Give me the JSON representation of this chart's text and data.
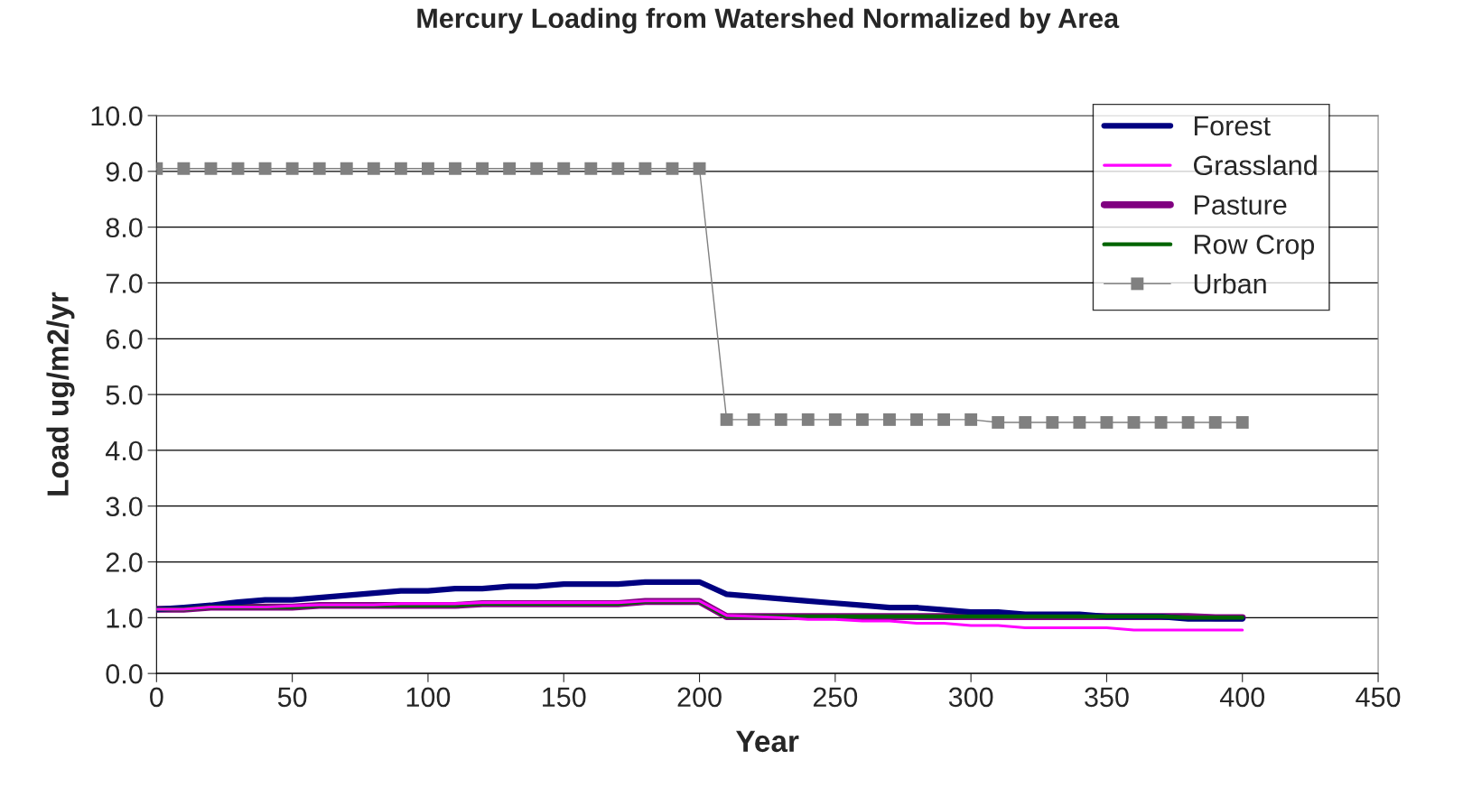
{
  "chart_data": {
    "type": "line",
    "title": "Mercury Loading from Watershed Normalized by Area",
    "xlabel": "Year",
    "ylabel": "Load ug/m2/yr",
    "x": [
      0,
      10,
      20,
      30,
      40,
      50,
      60,
      70,
      80,
      90,
      100,
      110,
      120,
      130,
      140,
      150,
      160,
      170,
      180,
      190,
      200,
      210,
      220,
      230,
      240,
      250,
      260,
      270,
      280,
      290,
      300,
      310,
      320,
      330,
      340,
      350,
      360,
      370,
      380,
      390,
      400
    ],
    "series": [
      {
        "name": "Forest",
        "color": "#000080",
        "marker": "none",
        "values": [
          1.15,
          1.18,
          1.22,
          1.28,
          1.32,
          1.32,
          1.36,
          1.4,
          1.44,
          1.48,
          1.48,
          1.52,
          1.52,
          1.56,
          1.56,
          1.6,
          1.6,
          1.6,
          1.64,
          1.64,
          1.64,
          1.42,
          1.38,
          1.34,
          1.3,
          1.26,
          1.22,
          1.18,
          1.18,
          1.14,
          1.1,
          1.1,
          1.06,
          1.06,
          1.06,
          1.02,
          1.02,
          1.02,
          0.98,
          0.98,
          0.98
        ]
      },
      {
        "name": "Grassland",
        "color": "#ff00ff",
        "marker": "none",
        "values": [
          1.15,
          1.15,
          1.19,
          1.19,
          1.19,
          1.21,
          1.23,
          1.23,
          1.23,
          1.25,
          1.25,
          1.25,
          1.27,
          1.27,
          1.27,
          1.27,
          1.27,
          1.27,
          1.3,
          1.3,
          1.3,
          1.04,
          1.02,
          1.0,
          0.97,
          0.97,
          0.94,
          0.94,
          0.9,
          0.9,
          0.86,
          0.86,
          0.82,
          0.82,
          0.82,
          0.82,
          0.78,
          0.78,
          0.78,
          0.78,
          0.78
        ]
      },
      {
        "name": "Pasture",
        "color": "#800080",
        "marker": "none",
        "values": [
          1.15,
          1.15,
          1.19,
          1.19,
          1.19,
          1.19,
          1.22,
          1.22,
          1.22,
          1.22,
          1.22,
          1.22,
          1.25,
          1.25,
          1.25,
          1.25,
          1.25,
          1.25,
          1.29,
          1.29,
          1.29,
          1.02,
          1.02,
          1.02,
          1.02,
          1.02,
          1.02,
          1.02,
          1.02,
          1.02,
          1.02,
          1.02,
          1.02,
          1.02,
          1.02,
          1.02,
          1.02,
          1.02,
          1.02,
          1.0,
          1.0
        ]
      },
      {
        "name": "Row Crop",
        "color": "#006400",
        "marker": "none",
        "values": [
          1.15,
          1.15,
          1.19,
          1.19,
          1.19,
          1.19,
          1.22,
          1.22,
          1.22,
          1.22,
          1.22,
          1.22,
          1.25,
          1.25,
          1.25,
          1.25,
          1.25,
          1.25,
          1.29,
          1.29,
          1.29,
          1.02,
          1.02,
          1.02,
          1.02,
          1.02,
          1.02,
          1.02,
          1.02,
          1.02,
          1.02,
          1.02,
          1.02,
          1.02,
          1.02,
          1.02,
          1.02,
          1.02,
          1.0,
          1.0,
          1.0
        ]
      },
      {
        "name": "Urban",
        "color": "#808080",
        "marker": "square",
        "values": [
          9.05,
          9.05,
          9.05,
          9.05,
          9.05,
          9.05,
          9.05,
          9.05,
          9.05,
          9.05,
          9.05,
          9.05,
          9.05,
          9.05,
          9.05,
          9.05,
          9.05,
          9.05,
          9.05,
          9.05,
          9.05,
          4.55,
          4.55,
          4.55,
          4.55,
          4.55,
          4.55,
          4.55,
          4.55,
          4.55,
          4.55,
          4.5,
          4.5,
          4.5,
          4.5,
          4.5,
          4.5,
          4.5,
          4.5,
          4.5,
          4.5
        ]
      }
    ],
    "xlim": [
      0,
      450
    ],
    "xticks": [
      0,
      50,
      100,
      150,
      200,
      250,
      300,
      350,
      400,
      450
    ],
    "ylim": [
      0,
      10
    ],
    "yticks": [
      {
        "value": 0,
        "label": "0.0"
      },
      {
        "value": 1,
        "label": "1.0"
      },
      {
        "value": 2,
        "label": "2.0"
      },
      {
        "value": 3,
        "label": "3.0"
      },
      {
        "value": 4,
        "label": "4.0"
      },
      {
        "value": 5,
        "label": "5.0"
      },
      {
        "value": 6,
        "label": "6.0"
      },
      {
        "value": 7,
        "label": "7.0"
      },
      {
        "value": 8,
        "label": "8.0"
      },
      {
        "value": 9,
        "label": "9.0"
      },
      {
        "value": 10,
        "label": "10.0"
      }
    ],
    "grid": "y",
    "legend": "top right"
  }
}
